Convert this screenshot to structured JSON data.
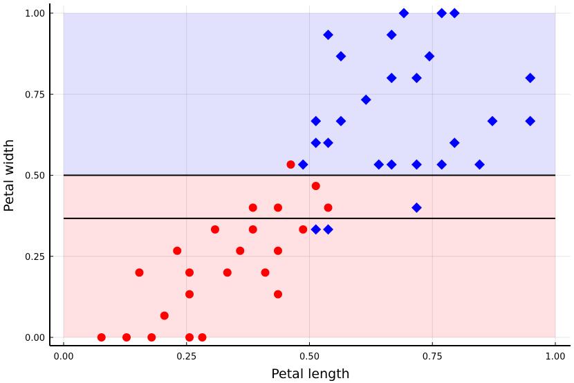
{
  "chart_data": {
    "type": "scatter",
    "xlabel": "Petal length",
    "ylabel": "Petal width",
    "xlim": [
      0,
      1
    ],
    "ylim": [
      0,
      1
    ],
    "xticks": [
      "0.00",
      "0.25",
      "0.50",
      "0.75",
      "1.00"
    ],
    "yticks": [
      "0.00",
      "0.25",
      "0.50",
      "0.75",
      "1.00"
    ],
    "grid": true,
    "regions": [
      {
        "y_from": 0,
        "y_to": 0.5,
        "color": "#ffe0e3"
      },
      {
        "y_from": 0.5,
        "y_to": 1.0,
        "color": "#e1e1fd"
      }
    ],
    "hlines": [
      0.5,
      0.367
    ],
    "series": [
      {
        "marker": "circle",
        "color": "#ff0000",
        "points": [
          [
            0.077,
            0.0
          ],
          [
            0.128,
            0.0
          ],
          [
            0.179,
            0.0
          ],
          [
            0.256,
            0.0
          ],
          [
            0.282,
            0.0
          ],
          [
            0.205,
            0.067
          ],
          [
            0.256,
            0.133
          ],
          [
            0.436,
            0.133
          ],
          [
            0.154,
            0.2
          ],
          [
            0.256,
            0.2
          ],
          [
            0.333,
            0.2
          ],
          [
            0.41,
            0.2
          ],
          [
            0.231,
            0.267
          ],
          [
            0.359,
            0.267
          ],
          [
            0.436,
            0.267
          ],
          [
            0.308,
            0.333
          ],
          [
            0.385,
            0.333
          ],
          [
            0.487,
            0.333
          ],
          [
            0.385,
            0.4
          ],
          [
            0.436,
            0.4
          ],
          [
            0.538,
            0.4
          ],
          [
            0.513,
            0.467
          ],
          [
            0.462,
            0.533
          ]
        ]
      },
      {
        "marker": "diamond",
        "color": "#0000ff",
        "points": [
          [
            0.513,
            0.333
          ],
          [
            0.538,
            0.333
          ],
          [
            0.718,
            0.4
          ],
          [
            0.487,
            0.533
          ],
          [
            0.641,
            0.533
          ],
          [
            0.667,
            0.533
          ],
          [
            0.718,
            0.533
          ],
          [
            0.769,
            0.533
          ],
          [
            0.846,
            0.533
          ],
          [
            0.513,
            0.6
          ],
          [
            0.538,
            0.6
          ],
          [
            0.795,
            0.6
          ],
          [
            0.513,
            0.667
          ],
          [
            0.564,
            0.667
          ],
          [
            0.872,
            0.667
          ],
          [
            0.949,
            0.667
          ],
          [
            0.615,
            0.733
          ],
          [
            0.667,
            0.8
          ],
          [
            0.718,
            0.8
          ],
          [
            0.949,
            0.8
          ],
          [
            0.564,
            0.867
          ],
          [
            0.744,
            0.867
          ],
          [
            0.538,
            0.933
          ],
          [
            0.667,
            0.933
          ],
          [
            0.692,
            1.0
          ],
          [
            0.769,
            1.0
          ],
          [
            0.795,
            1.0
          ]
        ]
      }
    ]
  }
}
